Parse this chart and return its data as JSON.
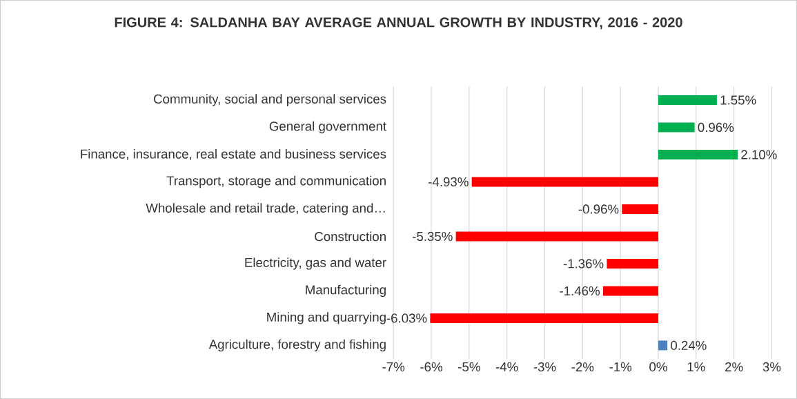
{
  "chart_data": {
    "type": "bar",
    "orientation": "horizontal",
    "title": "FIGURE 4: SALDANHA BAY AVERAGE ANNUAL GROWTH BY INDUSTRY, 2016 - 2020",
    "categories": [
      "Community, social and personal services",
      "General government",
      "Finance, insurance, real estate and business services",
      "Transport, storage and communication",
      "Wholesale and retail trade, catering and…",
      "Construction",
      "Electricity, gas and water",
      "Manufacturing",
      "Mining and quarrying",
      "Agriculture, forestry and fishing"
    ],
    "values": [
      1.55,
      0.96,
      2.1,
      -4.93,
      -0.96,
      -5.35,
      -1.36,
      -1.46,
      -6.03,
      0.24
    ],
    "colors": [
      "#00b050",
      "#00b050",
      "#00b050",
      "#ff0000",
      "#ff0000",
      "#ff0000",
      "#ff0000",
      "#ff0000",
      "#ff0000",
      "#4f81bd"
    ],
    "value_labels": [
      "1.55%",
      "0.96%",
      "2.10%",
      "-4.93%",
      "-0.96%",
      "-5.35%",
      "-1.36%",
      "-1.46%",
      "-6.03%",
      "0.24%"
    ],
    "xlim": [
      -7,
      3
    ],
    "xticks": [
      {
        "value": -7,
        "label": "-7%"
      },
      {
        "value": -6,
        "label": "-6%"
      },
      {
        "value": -5,
        "label": "-5%"
      },
      {
        "value": -4,
        "label": "-4%"
      },
      {
        "value": -3,
        "label": "-3%"
      },
      {
        "value": -2,
        "label": "-2%"
      },
      {
        "value": -1,
        "label": "-1%"
      },
      {
        "value": 0,
        "label": "0%"
      },
      {
        "value": 1,
        "label": "1%"
      },
      {
        "value": 2,
        "label": "2%"
      },
      {
        "value": 3,
        "label": "3%"
      }
    ],
    "grid": "x"
  }
}
